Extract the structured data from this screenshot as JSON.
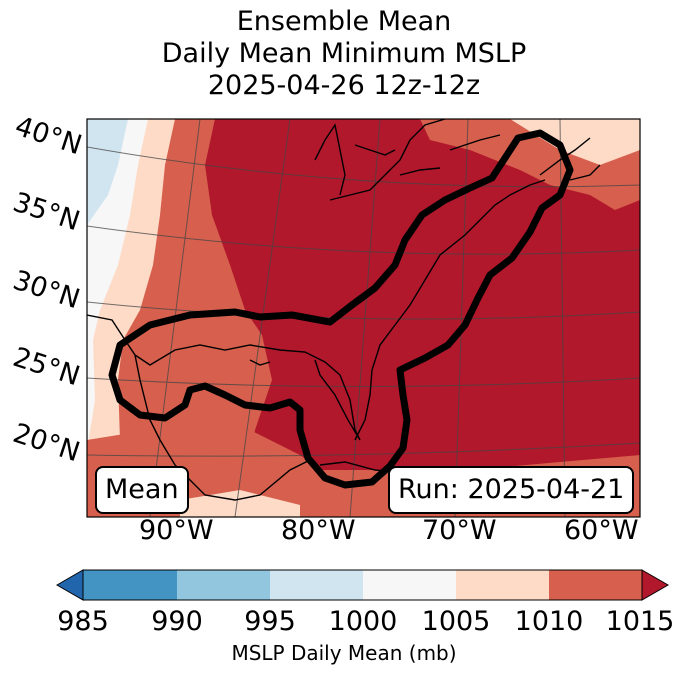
{
  "title": {
    "line1": "Ensemble Mean",
    "line2": "Daily Mean Minimum MSLP",
    "line3": "2025-04-26 12z-12z"
  },
  "map": {
    "lat_labels": [
      "40°N",
      "35°N",
      "30°N",
      "25°N",
      "20°N"
    ],
    "lon_labels": [
      "90°W",
      "80°W",
      "70°W",
      "60°W"
    ],
    "mean_box": "Mean",
    "run_box": "Run: 2025-04-21"
  },
  "colorbar": {
    "ticks": [
      "985",
      "990",
      "995",
      "1000",
      "1005",
      "1010",
      "1015"
    ],
    "label": "MSLP Daily Mean (mb)",
    "colors": [
      "#2166ac",
      "#4393c3",
      "#92c5de",
      "#d1e5f0",
      "#f7f7f7",
      "#fddbc7",
      "#d6604d",
      "#b2182b"
    ]
  }
}
